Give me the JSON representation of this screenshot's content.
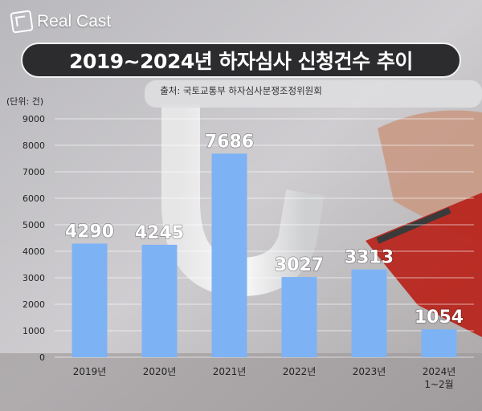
{
  "brand": {
    "name": "Real Cast"
  },
  "header": {
    "title": "2019~2024년 하자심사 신청건수 추이",
    "source": "출처: 국토교통부 하자심사분쟁조정위원회"
  },
  "colors": {
    "bar": "#7db3f5",
    "title_bg": "#2c2c2e"
  },
  "chart_data": {
    "type": "bar",
    "unit_label": "(단위: 건)",
    "categories": [
      [
        "2019년"
      ],
      [
        "2020년"
      ],
      [
        "2021년"
      ],
      [
        "2022년"
      ],
      [
        "2023년"
      ],
      [
        "2024년",
        "1~2월"
      ]
    ],
    "values": [
      4290,
      4245,
      7686,
      3027,
      3313,
      1054
    ],
    "ylim": [
      0,
      9000
    ],
    "yticks": [
      0,
      1000,
      2000,
      3000,
      4000,
      5000,
      6000,
      7000,
      8000,
      9000
    ],
    "grid": true,
    "legend": "none"
  }
}
